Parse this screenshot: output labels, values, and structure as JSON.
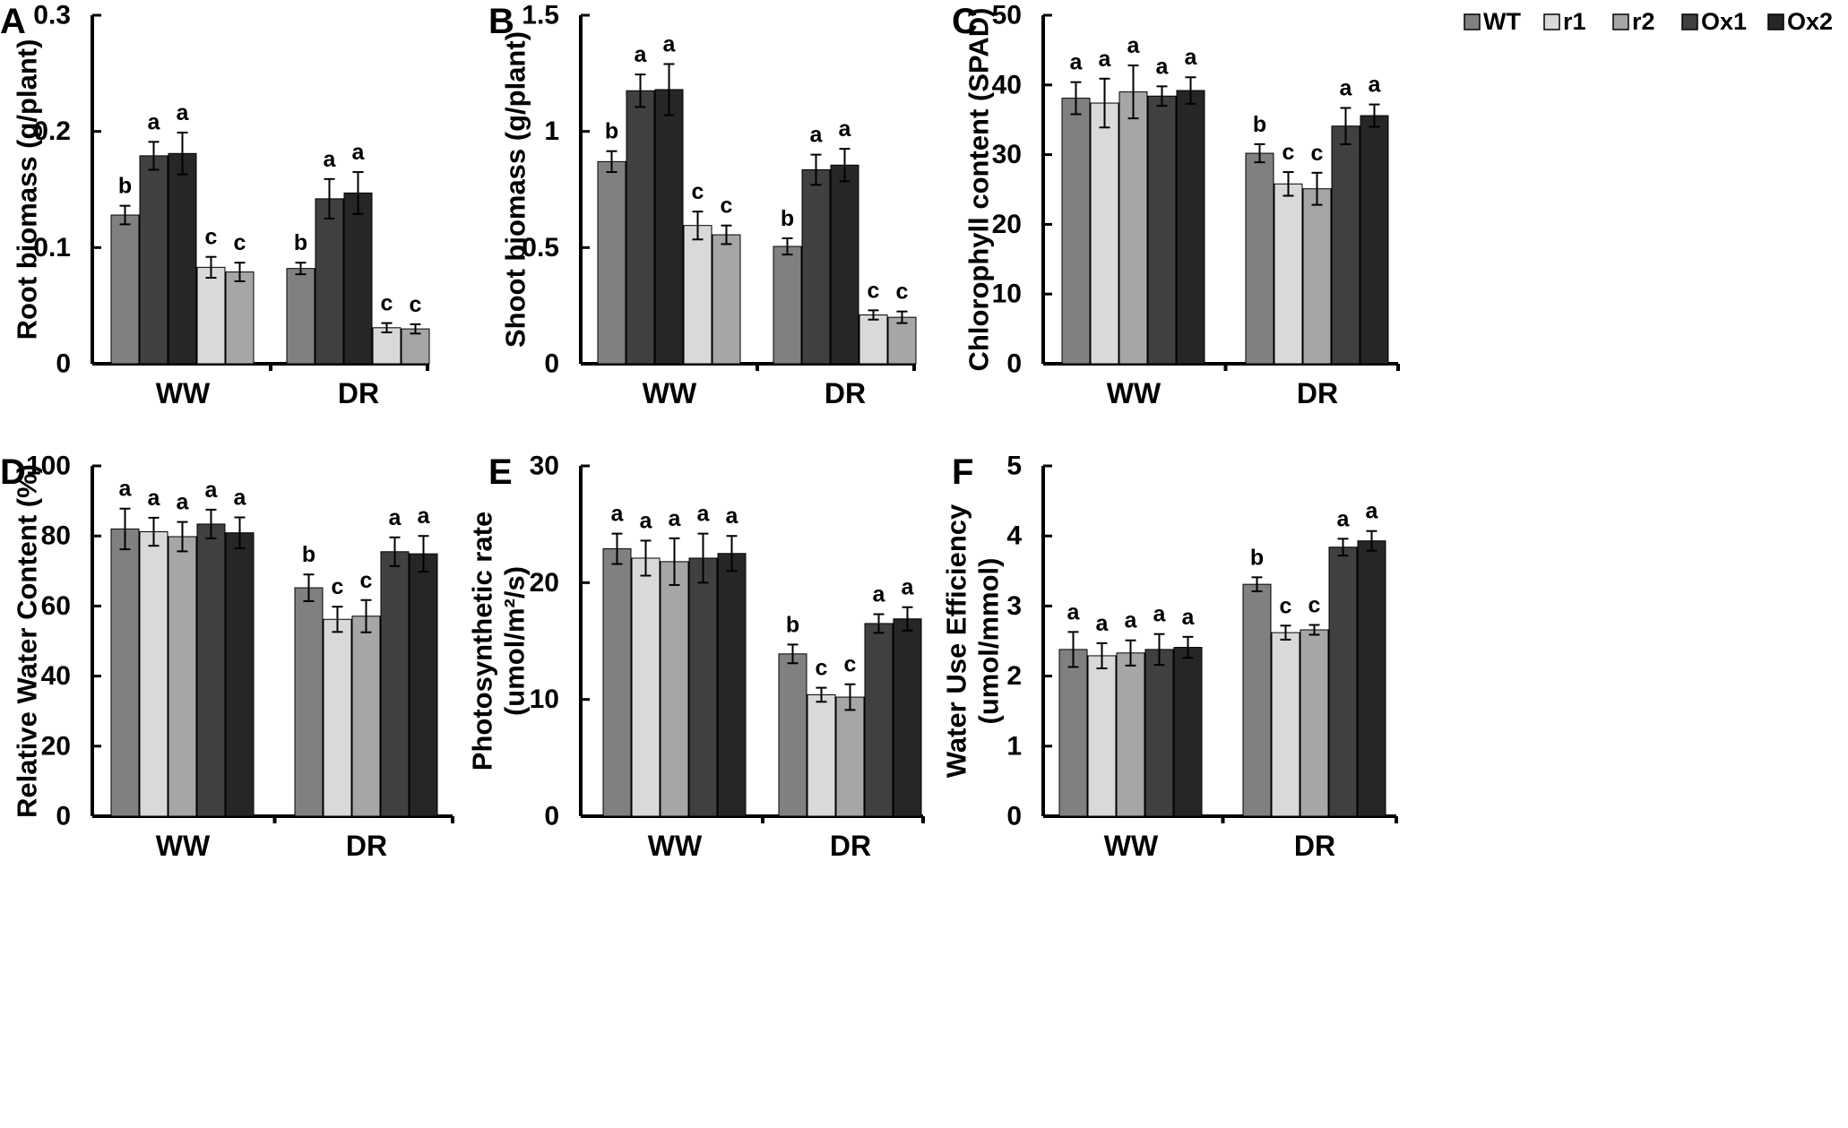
{
  "series_names": [
    "WT",
    "r1",
    "r2",
    "Ox1",
    "Ox2"
  ],
  "series_colors": {
    "WT": "#808080",
    "r1": "#d9d9d9",
    "r2": "#a6a6a6",
    "Ox1": "#404040",
    "Ox2": "#262626"
  },
  "chart_data": [
    {
      "panel": "A",
      "type": "bar",
      "ylabel_lines": [
        "Root biomass (g/plant)"
      ],
      "ylim": [
        0,
        0.3
      ],
      "yticks": [
        0,
        0.1,
        0.2,
        0.3
      ],
      "ytick_labels": [
        "0",
        "0.1",
        "0.2",
        "0.3"
      ],
      "categories": [
        "WW",
        "DR"
      ],
      "series": [
        {
          "name": "WT",
          "values": [
            0.128,
            0.082
          ],
          "errors": [
            0.008,
            0.005
          ],
          "letters": [
            "b",
            "b"
          ]
        },
        {
          "name": "Ox1",
          "values": [
            0.179,
            0.142
          ],
          "errors": [
            0.012,
            0.017
          ],
          "letters": [
            "a",
            "a"
          ]
        },
        {
          "name": "Ox2",
          "values": [
            0.181,
            0.147
          ],
          "errors": [
            0.018,
            0.018
          ],
          "letters": [
            "a",
            "a"
          ]
        },
        {
          "name": "r1",
          "values": [
            0.083,
            0.031
          ],
          "errors": [
            0.009,
            0.004
          ],
          "letters": [
            "c",
            "c"
          ]
        },
        {
          "name": "r2",
          "values": [
            0.079,
            0.03
          ],
          "errors": [
            0.008,
            0.004
          ],
          "letters": [
            "c",
            "c"
          ]
        }
      ]
    },
    {
      "panel": "B",
      "type": "bar",
      "ylabel_lines": [
        "Shoot biomass (g/plant)"
      ],
      "ylim": [
        0,
        1.5
      ],
      "yticks": [
        0,
        0.5,
        1,
        1.5
      ],
      "ytick_labels": [
        "0",
        "0.5",
        "1",
        "1.5"
      ],
      "categories": [
        "WW",
        "DR"
      ],
      "series": [
        {
          "name": "WT",
          "values": [
            0.87,
            0.505
          ],
          "errors": [
            0.045,
            0.035
          ],
          "letters": [
            "b",
            "b"
          ]
        },
        {
          "name": "Ox1",
          "values": [
            1.175,
            0.835
          ],
          "errors": [
            0.07,
            0.065
          ],
          "letters": [
            "a",
            "a"
          ]
        },
        {
          "name": "Ox2",
          "values": [
            1.18,
            0.855
          ],
          "errors": [
            0.11,
            0.07
          ],
          "letters": [
            "a",
            "a"
          ]
        },
        {
          "name": "r1",
          "values": [
            0.595,
            0.21
          ],
          "errors": [
            0.06,
            0.02
          ],
          "letters": [
            "c",
            "c"
          ]
        },
        {
          "name": "r2",
          "values": [
            0.555,
            0.2
          ],
          "errors": [
            0.04,
            0.025
          ],
          "letters": [
            "c",
            "c"
          ]
        }
      ]
    },
    {
      "panel": "C",
      "type": "bar",
      "ylabel_lines": [
        "Chlorophyll content (SPAD)"
      ],
      "ylim": [
        0,
        50
      ],
      "yticks": [
        0,
        10,
        20,
        30,
        40,
        50
      ],
      "ytick_labels": [
        "0",
        "10",
        "20",
        "30",
        "40",
        "50"
      ],
      "categories": [
        "WW",
        "DR"
      ],
      "legend_position": "top-right",
      "series": [
        {
          "name": "WT",
          "values": [
            38.1,
            30.2
          ],
          "errors": [
            2.3,
            1.3
          ],
          "letters": [
            "a",
            "b"
          ]
        },
        {
          "name": "r1",
          "values": [
            37.4,
            25.8
          ],
          "errors": [
            3.5,
            1.7
          ],
          "letters": [
            "a",
            "c"
          ]
        },
        {
          "name": "r2",
          "values": [
            39.0,
            25.1
          ],
          "errors": [
            3.8,
            2.3
          ],
          "letters": [
            "a",
            "c"
          ]
        },
        {
          "name": "Ox1",
          "values": [
            38.4,
            34.1
          ],
          "errors": [
            1.4,
            2.6
          ],
          "letters": [
            "a",
            "a"
          ]
        },
        {
          "name": "Ox2",
          "values": [
            39.2,
            35.6
          ],
          "errors": [
            1.9,
            1.6
          ],
          "letters": [
            "a",
            "a"
          ]
        }
      ]
    },
    {
      "panel": "D",
      "type": "bar",
      "ylabel_lines": [
        "Relative Water Content (%)"
      ],
      "ylim": [
        0,
        100
      ],
      "yticks": [
        0,
        20,
        40,
        60,
        80,
        100
      ],
      "ytick_labels": [
        "0",
        "20",
        "40",
        "60",
        "80",
        "100"
      ],
      "categories": [
        "WW",
        "DR"
      ],
      "series": [
        {
          "name": "WT",
          "values": [
            82,
            65.2
          ],
          "errors": [
            5.8,
            3.8
          ],
          "letters": [
            "a",
            "b"
          ]
        },
        {
          "name": "r1",
          "values": [
            81.2,
            56.2
          ],
          "errors": [
            4,
            3.6
          ],
          "letters": [
            "a",
            "c"
          ]
        },
        {
          "name": "r2",
          "values": [
            79.8,
            57.1
          ],
          "errors": [
            4.2,
            4.6
          ],
          "letters": [
            "a",
            "c"
          ]
        },
        {
          "name": "Ox1",
          "values": [
            83.4,
            75.5
          ],
          "errors": [
            4.1,
            4.1
          ],
          "letters": [
            "a",
            "a"
          ]
        },
        {
          "name": "Ox2",
          "values": [
            80.9,
            74.9
          ],
          "errors": [
            4.4,
            5.1
          ],
          "letters": [
            "a",
            "a"
          ]
        }
      ]
    },
    {
      "panel": "E",
      "type": "bar",
      "ylabel_lines": [
        "Photosynthetic rate",
        "(umol/m²/s)"
      ],
      "ylim": [
        0,
        30
      ],
      "yticks": [
        0,
        10,
        20,
        30
      ],
      "ytick_labels": [
        "0",
        "10",
        "20",
        "30"
      ],
      "categories": [
        "WW",
        "DR"
      ],
      "series": [
        {
          "name": "WT",
          "values": [
            22.9,
            13.9
          ],
          "errors": [
            1.3,
            0.8
          ],
          "letters": [
            "a",
            "b"
          ]
        },
        {
          "name": "r1",
          "values": [
            22.1,
            10.4
          ],
          "errors": [
            1.5,
            0.6
          ],
          "letters": [
            "a",
            "c"
          ]
        },
        {
          "name": "r2",
          "values": [
            21.8,
            10.2
          ],
          "errors": [
            2,
            1.1
          ],
          "letters": [
            "a",
            "c"
          ]
        },
        {
          "name": "Ox1",
          "values": [
            22.1,
            16.5
          ],
          "errors": [
            2.1,
            0.8
          ],
          "letters": [
            "a",
            "a"
          ]
        },
        {
          "name": "Ox2",
          "values": [
            22.5,
            16.9
          ],
          "errors": [
            1.5,
            1
          ],
          "letters": [
            "a",
            "a"
          ]
        }
      ]
    },
    {
      "panel": "F",
      "type": "bar",
      "ylabel_lines": [
        "Water Use Efficiency",
        "(umol/mmol)"
      ],
      "ylim": [
        0,
        5
      ],
      "yticks": [
        0,
        1,
        2,
        3,
        4,
        5
      ],
      "ytick_labels": [
        "0",
        "1",
        "2",
        "3",
        "4",
        "5"
      ],
      "categories": [
        "WW",
        "DR"
      ],
      "series": [
        {
          "name": "WT",
          "values": [
            2.38,
            3.31
          ],
          "errors": [
            0.25,
            0.1
          ],
          "letters": [
            "a",
            "b"
          ]
        },
        {
          "name": "r1",
          "values": [
            2.29,
            2.62
          ],
          "errors": [
            0.18,
            0.1
          ],
          "letters": [
            "a",
            "c"
          ]
        },
        {
          "name": "r2",
          "values": [
            2.33,
            2.66
          ],
          "errors": [
            0.18,
            0.07
          ],
          "letters": [
            "a",
            "c"
          ]
        },
        {
          "name": "Ox1",
          "values": [
            2.38,
            3.84
          ],
          "errors": [
            0.22,
            0.12
          ],
          "letters": [
            "a",
            "a"
          ]
        },
        {
          "name": "Ox2",
          "values": [
            2.41,
            3.93
          ],
          "errors": [
            0.15,
            0.14
          ],
          "letters": [
            "a",
            "a"
          ]
        }
      ]
    }
  ]
}
